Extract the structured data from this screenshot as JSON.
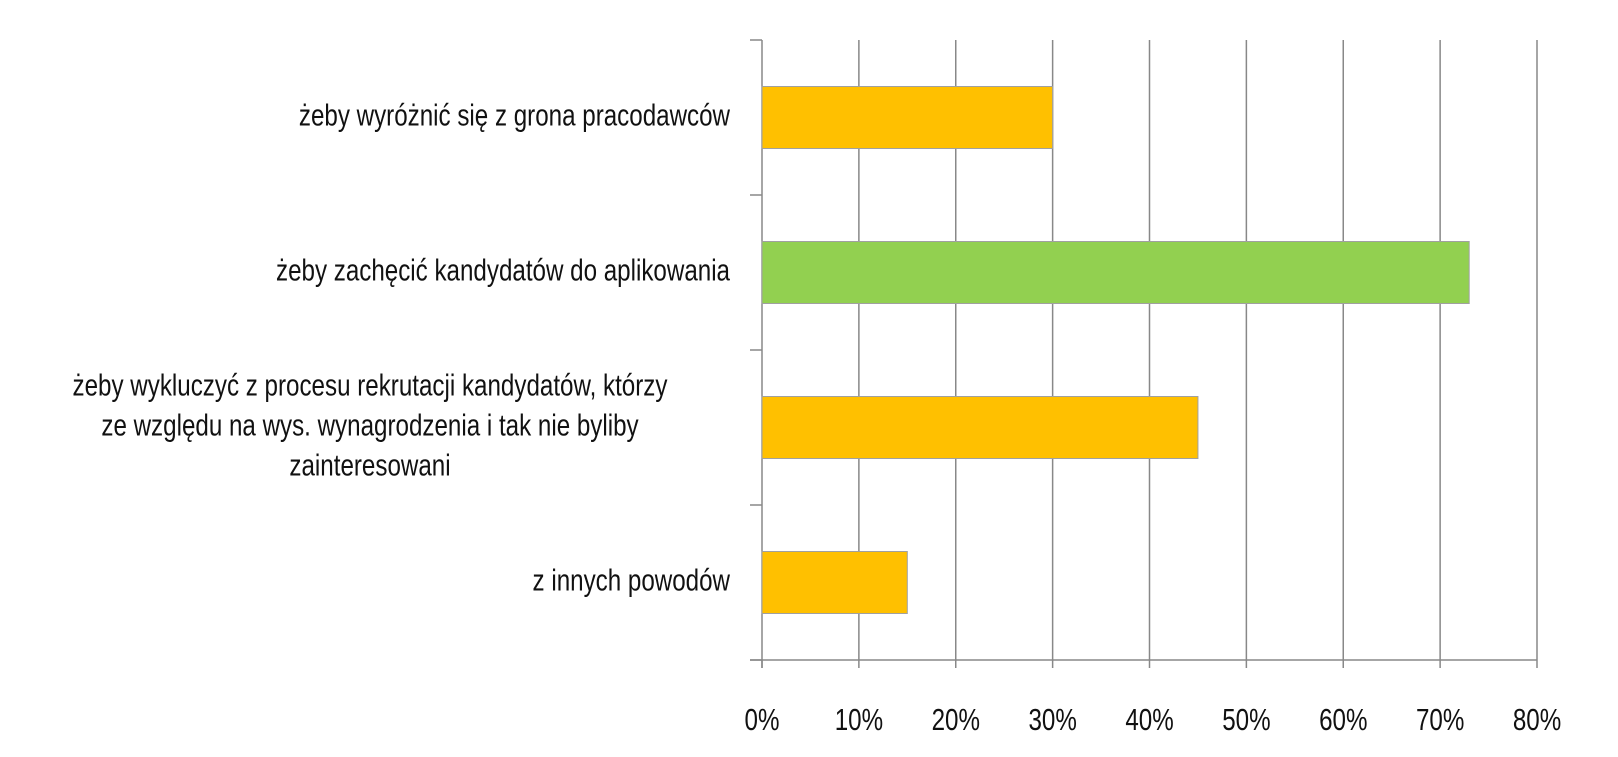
{
  "chart_data": {
    "type": "bar",
    "orientation": "horizontal",
    "categories": [
      "żeby wyróżnić się z grona pracodawców",
      "żeby zachęcić kandydatów do aplikowania",
      "żeby wykluczyć z procesu rekrutacji kandydatów, którzy\nze względu na wys. wynagrodzenia i tak nie byliby\nzainteresowani",
      "z innych powodów"
    ],
    "values": [
      30,
      73,
      45,
      15
    ],
    "colors": [
      "#ffc000",
      "#92d050",
      "#ffc000",
      "#ffc000"
    ],
    "xlim": [
      0,
      80
    ],
    "xticks": [
      {
        "value": 0,
        "label": "0%"
      },
      {
        "value": 10,
        "label": "10%"
      },
      {
        "value": 20,
        "label": "20%"
      },
      {
        "value": 30,
        "label": "30%"
      },
      {
        "value": 40,
        "label": "40%"
      },
      {
        "value": 50,
        "label": "50%"
      },
      {
        "value": 60,
        "label": "60%"
      },
      {
        "value": 70,
        "label": "70%"
      },
      {
        "value": 80,
        "label": "80%"
      }
    ],
    "grid": true
  }
}
